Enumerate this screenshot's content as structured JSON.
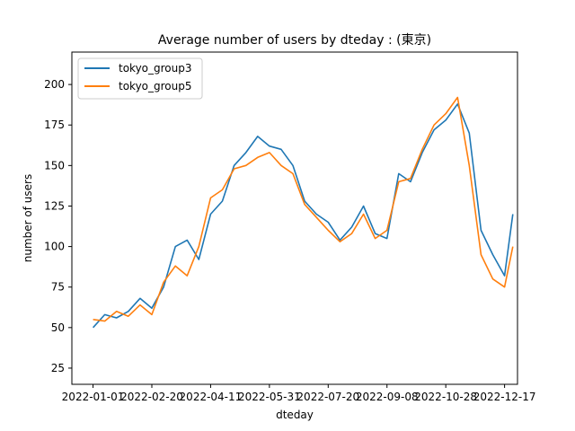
{
  "chart_data": {
    "type": "line",
    "title": "Average number of users by dteday : (東京)",
    "xlabel": "dteday",
    "ylabel": "number of users",
    "xlim": [
      "2021-12-14",
      "2022-12-28"
    ],
    "ylim": [
      15,
      220
    ],
    "x_tick_labels": [
      "2022-01-01",
      "2022-02-20",
      "2022-04-11",
      "2022-05-31",
      "2022-07-20",
      "2022-09-08",
      "2022-10-28",
      "2022-12-17"
    ],
    "y_tick_labels": [
      "25",
      "50",
      "75",
      "100",
      "125",
      "150",
      "175",
      "200"
    ],
    "grid": false,
    "legend_position": "upper-left",
    "x": [
      "2022-01-01",
      "2022-01-11",
      "2022-01-21",
      "2022-01-31",
      "2022-02-10",
      "2022-02-20",
      "2022-03-02",
      "2022-03-12",
      "2022-03-22",
      "2022-04-01",
      "2022-04-11",
      "2022-04-21",
      "2022-05-01",
      "2022-05-11",
      "2022-05-21",
      "2022-05-31",
      "2022-06-10",
      "2022-06-20",
      "2022-06-30",
      "2022-07-10",
      "2022-07-20",
      "2022-07-30",
      "2022-08-09",
      "2022-08-19",
      "2022-08-29",
      "2022-09-08",
      "2022-09-18",
      "2022-09-28",
      "2022-10-08",
      "2022-10-18",
      "2022-10-28",
      "2022-11-07",
      "2022-11-17",
      "2022-11-27",
      "2022-12-07",
      "2022-12-17",
      "2022-12-24"
    ],
    "series": [
      {
        "name": "tokyo_group3",
        "color": "#1f77b4",
        "values": [
          50,
          58,
          56,
          60,
          68,
          62,
          75,
          100,
          104,
          92,
          120,
          128,
          150,
          158,
          168,
          162,
          160,
          150,
          128,
          120,
          115,
          104,
          112,
          125,
          108,
          105,
          145,
          140,
          158,
          172,
          178,
          188,
          170,
          110,
          95,
          82,
          120
        ]
      },
      {
        "name": "tokyo_group5",
        "color": "#ff7f0e",
        "values": [
          55,
          54,
          60,
          57,
          64,
          58,
          78,
          88,
          82,
          100,
          130,
          135,
          148,
          150,
          155,
          158,
          150,
          145,
          126,
          118,
          110,
          103,
          108,
          120,
          105,
          110,
          140,
          142,
          160,
          175,
          182,
          192,
          150,
          95,
          80,
          75,
          100
        ]
      }
    ]
  }
}
